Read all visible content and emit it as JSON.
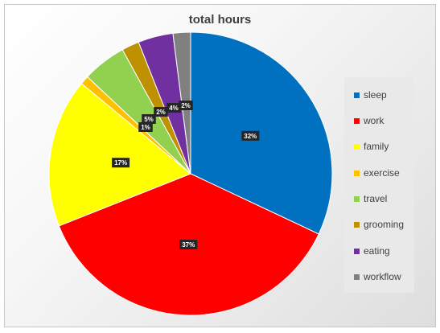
{
  "chart_data": {
    "type": "pie",
    "title": "total hours",
    "legend_position": "right",
    "slices": [
      {
        "label": "sleep",
        "value": 32,
        "display": "32%",
        "color": "#0070C0"
      },
      {
        "label": "work",
        "value": 37,
        "display": "37%",
        "color": "#FF0000"
      },
      {
        "label": "family",
        "value": 17,
        "display": "17%",
        "color": "#FFFF00"
      },
      {
        "label": "exercise",
        "value": 1,
        "display": "1%",
        "color": "#FFC000"
      },
      {
        "label": "travel",
        "value": 5,
        "display": "5%",
        "color": "#92D050"
      },
      {
        "label": "grooming",
        "value": 2,
        "display": "2%",
        "color": "#BF9000"
      },
      {
        "label": "eating",
        "value": 4,
        "display": "4%",
        "color": "#7030A0"
      },
      {
        "label": "workflow",
        "value": 2,
        "display": "2%",
        "color": "#808080"
      }
    ]
  }
}
